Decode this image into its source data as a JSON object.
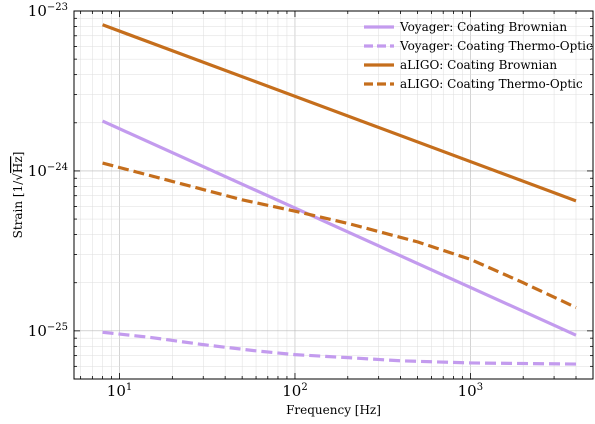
{
  "chart_data": {
    "type": "line",
    "xlabel": "Frequency [Hz]",
    "ylabel_prefix": "Strain [1/",
    "ylabel_root": "Hz",
    "ylabel_suffix": "]",
    "x_scale": "log",
    "y_scale": "log",
    "xlim": [
      5.5,
      5000
    ],
    "ylim": [
      5e-26,
      1e-23
    ],
    "grid": true,
    "legend_position": "top-right",
    "x_ticks": [
      {
        "value": 10,
        "base": "10",
        "exp": "1"
      },
      {
        "value": 100,
        "base": "10",
        "exp": "2"
      },
      {
        "value": 1000,
        "base": "10",
        "exp": "3"
      }
    ],
    "y_ticks": [
      {
        "value": 1e-25,
        "base": "10",
        "exp": "−25"
      },
      {
        "value": 1e-24,
        "base": "10",
        "exp": "−24"
      },
      {
        "value": 1e-23,
        "base": "10",
        "exp": "−23"
      }
    ],
    "series": [
      {
        "name": "Voyager: Coating Brownian",
        "color": "#c39bee",
        "dash": "solid",
        "x": [
          8,
          4000
        ],
        "y": [
          2.05e-24,
          9.4e-26
        ]
      },
      {
        "name": "Voyager: Coating Thermo-Optic",
        "color": "#c39bee",
        "dash": "dashed",
        "x": [
          8,
          15,
          30,
          60,
          100,
          200,
          400,
          1000,
          2000,
          4000
        ],
        "y": [
          9.8e-26,
          9.1e-26,
          8.2e-26,
          7.5e-26,
          7.1e-26,
          6.8e-26,
          6.5e-26,
          6.3e-26,
          6.25e-26,
          6.2e-26
        ]
      },
      {
        "name": "aLIGO: Coating Brownian",
        "color": "#c56e1c",
        "dash": "solid",
        "x": [
          8,
          4000
        ],
        "y": [
          8.2e-24,
          6.5e-25
        ]
      },
      {
        "name": "aLIGO: Coating Thermo-Optic",
        "color": "#c56e1c",
        "dash": "dashed",
        "x": [
          8,
          20,
          50,
          100,
          200,
          500,
          1000,
          2000,
          4000
        ],
        "y": [
          1.12e-24,
          8.6e-25,
          6.6e-25,
          5.6e-25,
          4.7e-25,
          3.6e-25,
          2.8e-25,
          2e-25,
          1.4e-25
        ]
      }
    ]
  }
}
